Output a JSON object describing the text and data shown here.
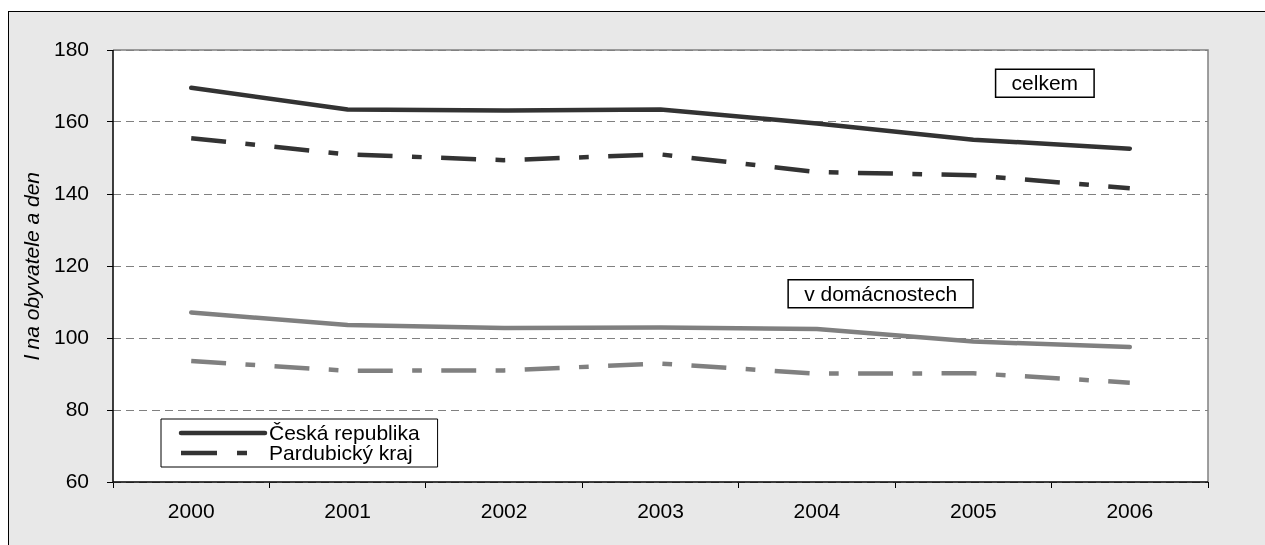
{
  "chart_data": {
    "type": "line",
    "ylabel": "l na obyvatele a den",
    "categories": [
      "2000",
      "2001",
      "2002",
      "2003",
      "2004",
      "2005",
      "2006"
    ],
    "series": [
      {
        "name": "Česká republika",
        "color": "#333333",
        "line_style": "solid",
        "values": [
          169.5,
          163.5,
          163.2,
          163.5,
          159.6,
          155.1,
          152.6
        ]
      },
      {
        "name": "Pardubický kraj",
        "color": "#333333",
        "line_style": "dashed",
        "values": [
          155.5,
          151.0,
          149.4,
          151.0,
          146.1,
          145.2,
          141.6
        ]
      },
      {
        "color": "#808080",
        "line_style": "solid",
        "values": [
          107.1,
          103.6,
          102.8,
          102.9,
          102.5,
          99.0,
          97.5
        ]
      },
      {
        "color": "#808080",
        "line_style": "dashed",
        "values": [
          93.6,
          90.9,
          91.0,
          92.9,
          90.1,
          90.2,
          87.6
        ]
      }
    ],
    "ylim": [
      60,
      180
    ],
    "yticks": [
      60,
      80,
      100,
      120,
      140,
      160,
      180
    ],
    "grid": "y",
    "legend": "bottom left",
    "marker": "none",
    "annotations": [
      "celkem",
      "v domácnostech"
    ]
  }
}
